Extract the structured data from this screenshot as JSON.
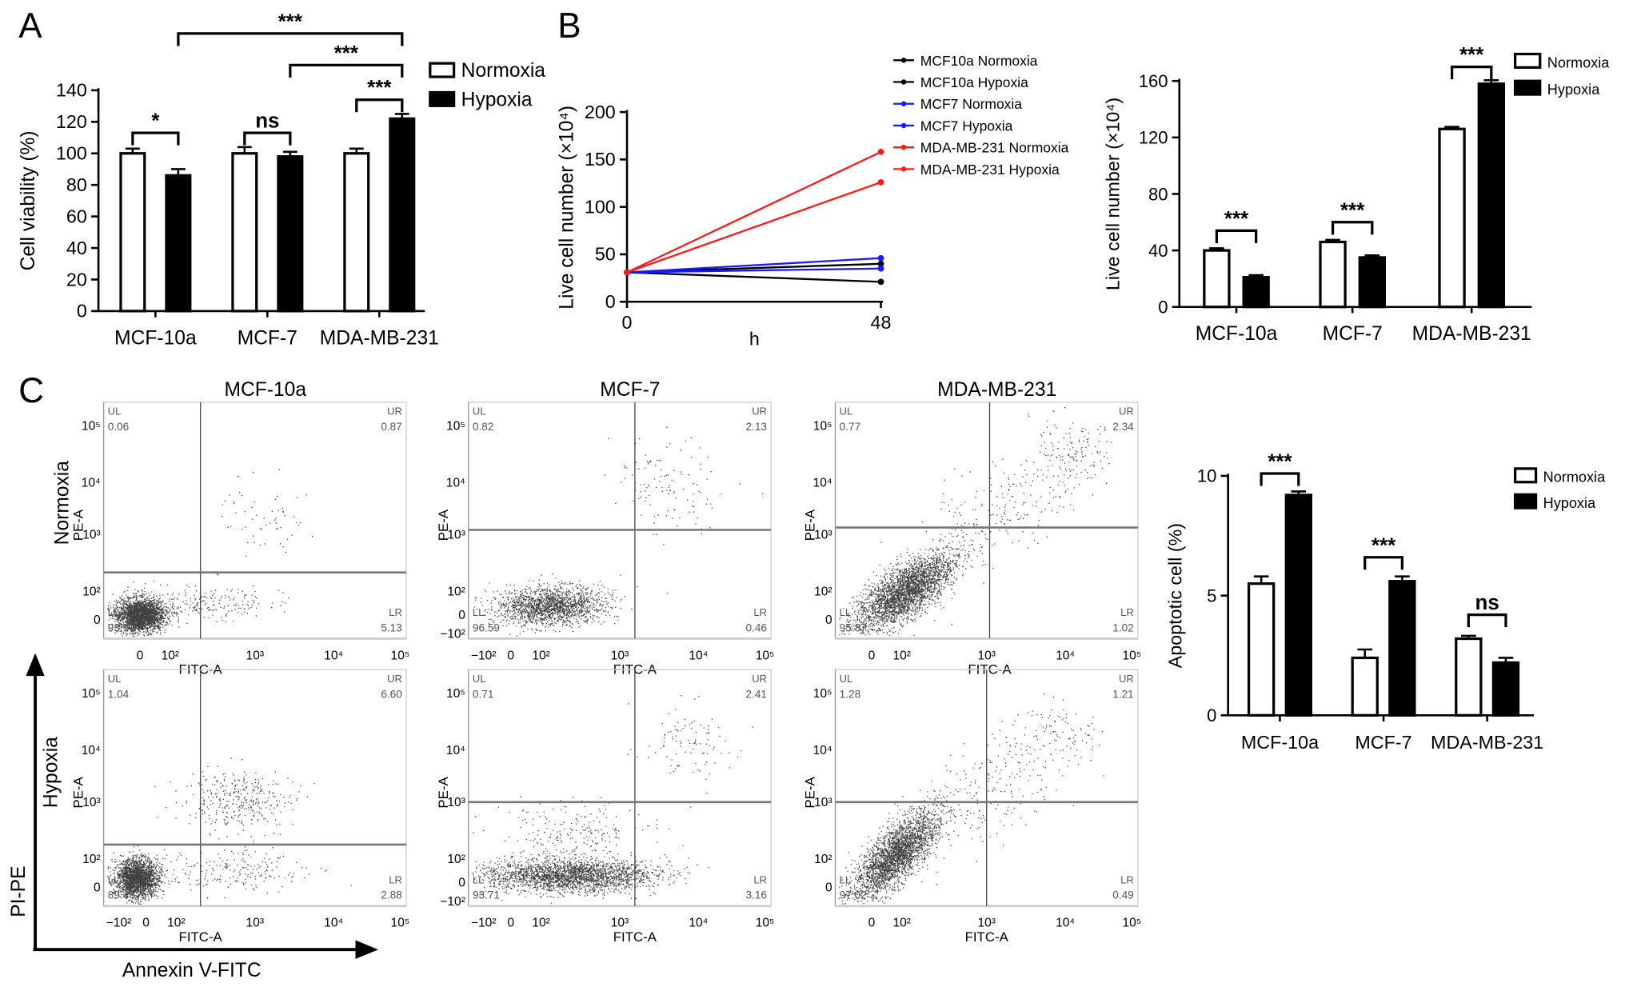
{
  "panel_labels": [
    "A",
    "B",
    "C"
  ],
  "chart_data": [
    {
      "id": "A",
      "type": "bar",
      "ylabel": "Cell viability (%)",
      "ylim": [
        0,
        140
      ],
      "yticks": [
        0,
        20,
        40,
        60,
        80,
        100,
        120,
        140
      ],
      "categories": [
        "MCF-10a",
        "MCF-7",
        "MDA-MB-231"
      ],
      "series": [
        {
          "name": "Normoxia",
          "values": [
            100,
            100,
            100
          ],
          "errors": [
            3,
            4,
            3
          ],
          "color": "#ffffff"
        },
        {
          "name": "Hypoxia",
          "values": [
            86,
            98,
            122
          ],
          "errors": [
            4,
            3,
            3
          ],
          "color": "#000000"
        }
      ],
      "legend": "top-right",
      "significance": [
        {
          "from": [
            0,
            0
          ],
          "to": [
            0,
            1
          ],
          "label": "*",
          "y": 113
        },
        {
          "from": [
            1,
            0
          ],
          "to": [
            1,
            1
          ],
          "label": "ns",
          "y": 113
        },
        {
          "from": [
            2,
            0
          ],
          "to": [
            2,
            1
          ],
          "label": "***",
          "y": 134
        },
        {
          "from": [
            1,
            1
          ],
          "to": [
            2,
            1
          ],
          "label": "***",
          "y": 156
        },
        {
          "from": [
            0,
            1
          ],
          "to": [
            2,
            1
          ],
          "label": "***",
          "y": 176
        }
      ]
    },
    {
      "id": "B-line",
      "type": "line",
      "xlabel": "h",
      "ylabel": "Live cell number (×10⁴)",
      "x": [
        0,
        48
      ],
      "xticks": [
        0,
        48
      ],
      "ylim": [
        0,
        200
      ],
      "yticks": [
        0,
        50,
        100,
        150,
        200
      ],
      "series": [
        {
          "name": "MCF10a Normoxia",
          "values": [
            31,
            40
          ],
          "color": "#000000"
        },
        {
          "name": "MCF10a Hypoxia",
          "values": [
            31,
            21
          ],
          "color": "#000000"
        },
        {
          "name": "MCF7 Normoxia",
          "values": [
            31,
            46
          ],
          "color": "#1a1aff"
        },
        {
          "name": "MCF7 Hypoxia",
          "values": [
            31,
            35
          ],
          "color": "#1a1aff"
        },
        {
          "name": "MDA-MB-231 Normoxia",
          "values": [
            31,
            126
          ],
          "color": "#ff1a1a"
        },
        {
          "name": "MDA-MB-231 Hypoxia",
          "values": [
            31,
            158
          ],
          "color": "#ff1a1a"
        }
      ],
      "legend": "top-right"
    },
    {
      "id": "B-bar",
      "type": "bar",
      "ylabel": "Live cell number (×10⁴)",
      "ylim": [
        0,
        160
      ],
      "yticks": [
        0,
        40,
        80,
        120,
        160
      ],
      "categories": [
        "MCF-10a",
        "MCF-7",
        "MDA-MB-231"
      ],
      "series": [
        {
          "name": "Normoxia",
          "values": [
            40,
            46,
            126
          ],
          "errors": [
            1.5,
            1.5,
            1.5
          ],
          "color": "#ffffff"
        },
        {
          "name": "Hypoxia",
          "values": [
            21,
            35,
            158
          ],
          "errors": [
            1.5,
            1.5,
            2.5
          ],
          "color": "#000000"
        }
      ],
      "legend": "top-right",
      "significance": [
        {
          "from": [
            0,
            0
          ],
          "to": [
            0,
            1
          ],
          "label": "***",
          "y": 54
        },
        {
          "from": [
            1,
            0
          ],
          "to": [
            1,
            1
          ],
          "label": "***",
          "y": 60
        },
        {
          "from": [
            2,
            0
          ],
          "to": [
            2,
            1
          ],
          "label": "***",
          "y": 170
        }
      ]
    },
    {
      "id": "C-bar",
      "type": "bar",
      "ylabel": "Apoptotic cell (%)",
      "ylim": [
        0,
        10
      ],
      "yticks": [
        0,
        5,
        10
      ],
      "categories": [
        "MCF-10a",
        "MCF-7",
        "MDA-MB-231"
      ],
      "series": [
        {
          "name": "Normoxia",
          "values": [
            5.5,
            2.4,
            3.2
          ],
          "errors": [
            0.3,
            0.35,
            0.12
          ],
          "color": "#ffffff"
        },
        {
          "name": "Hypoxia",
          "values": [
            9.2,
            5.6,
            2.2
          ],
          "errors": [
            0.15,
            0.2,
            0.2
          ],
          "color": "#000000"
        }
      ],
      "legend": "top-right",
      "significance": [
        {
          "from": [
            0,
            0
          ],
          "to": [
            0,
            1
          ],
          "label": "***",
          "y": 10.1
        },
        {
          "from": [
            1,
            0
          ],
          "to": [
            1,
            1
          ],
          "label": "***",
          "y": 6.6
        },
        {
          "from": [
            2,
            0
          ],
          "to": [
            2,
            1
          ],
          "label": "ns",
          "y": 4.2
        }
      ]
    }
  ],
  "flow": {
    "column_titles": [
      "MCF-10a",
      "MCF-7",
      "MDA-MB-231"
    ],
    "row_labels": [
      "Normoxia",
      "Hypoxia"
    ],
    "x_axis_label": "FITC-A",
    "y_axis_label": "PE-A",
    "global_y_label": "PI-PE",
    "global_x_label": "Annexin V-FITC",
    "quadrant_names": [
      "UL",
      "UR",
      "LL",
      "LR"
    ],
    "plots": [
      {
        "row": 0,
        "col": 0,
        "UL": "0.06",
        "UR": "0.87",
        "LL": "93.94",
        "LR": "5.13",
        "x_ticks": [
          "0",
          "10²",
          "10³",
          "10⁴",
          "10⁵"
        ],
        "y_ticks": [
          "10⁵",
          "10⁴",
          "10³",
          "10²",
          "0"
        ]
      },
      {
        "row": 0,
        "col": 1,
        "UL": "0.82",
        "UR": "2.13",
        "LL": "96.59",
        "LR": "0.46",
        "x_ticks": [
          "−10²",
          "0",
          "10²",
          "10³",
          "10⁴",
          "10⁵"
        ],
        "y_ticks": [
          "10⁵",
          "10⁴",
          "10³",
          "10²",
          "0",
          "−10²"
        ]
      },
      {
        "row": 0,
        "col": 2,
        "UL": "0.77",
        "UR": "2.34",
        "LL": "95.87",
        "LR": "1.02",
        "x_ticks": [
          "0",
          "10²",
          "10³",
          "10⁴",
          "10⁵"
        ],
        "y_ticks": [
          "10⁵",
          "10⁴",
          "10³",
          "10²",
          "0"
        ]
      },
      {
        "row": 1,
        "col": 0,
        "UL": "1.04",
        "UR": "6.60",
        "LL": "89.48",
        "LR": "2.88",
        "x_ticks": [
          "−10²",
          "0",
          "10²",
          "10³",
          "10⁴",
          "10⁵"
        ],
        "y_ticks": [
          "10⁵",
          "10⁴",
          "10³",
          "10²",
          "0"
        ]
      },
      {
        "row": 1,
        "col": 1,
        "UL": "0.71",
        "UR": "2.41",
        "LL": "93.71",
        "LR": "3.16",
        "x_ticks": [
          "−10²",
          "0",
          "10²",
          "10³",
          "10⁴",
          "10⁵"
        ],
        "y_ticks": [
          "10⁵",
          "10⁴",
          "10³",
          "10²",
          "0",
          "−10²"
        ]
      },
      {
        "row": 1,
        "col": 2,
        "UL": "1.28",
        "UR": "1.21",
        "LL": "97.02",
        "LR": "0.49",
        "x_ticks": [
          "0",
          "10²",
          "10³",
          "10⁴",
          "10⁵"
        ],
        "y_ticks": [
          "10⁵",
          "10⁴",
          "10³",
          "10²",
          "0"
        ]
      }
    ]
  }
}
